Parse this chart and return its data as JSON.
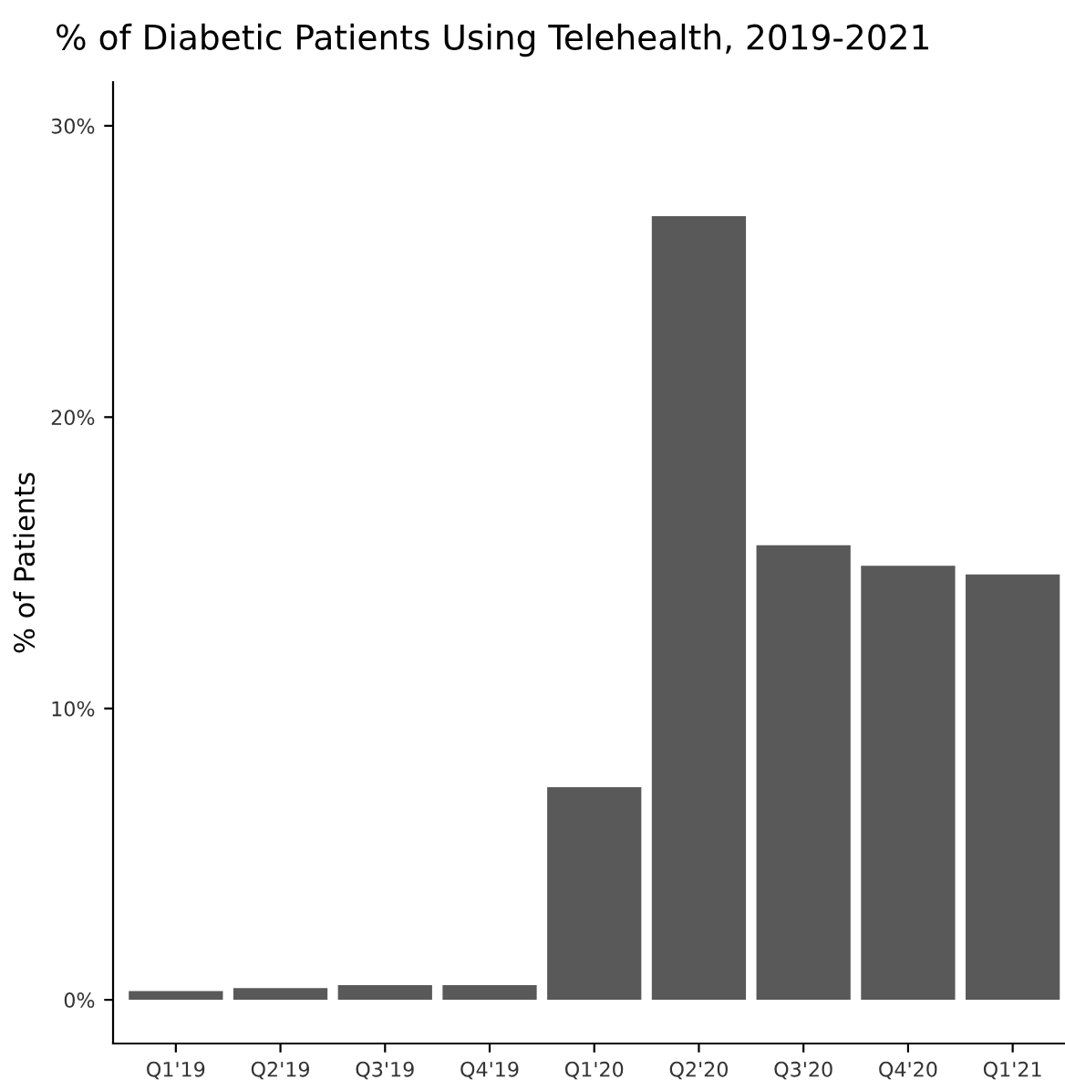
{
  "chart_data": {
    "type": "bar",
    "title": "% of Diabetic Patients Using Telehealth, 2019-2021",
    "ylabel": "% of Patients",
    "categories": [
      "Q1'19",
      "Q2'19",
      "Q3'19",
      "Q4'19",
      "Q1'20",
      "Q2'20",
      "Q3'20",
      "Q4'20",
      "Q1'21"
    ],
    "values": [
      0.3,
      0.4,
      0.5,
      0.5,
      7.3,
      26.9,
      15.6,
      14.9,
      14.6
    ],
    "color": "#595959",
    "ylim": [
      -1.5,
      31.5
    ],
    "yticks": [
      {
        "value": 0,
        "label": "0%"
      },
      {
        "value": 10,
        "label": "10%"
      },
      {
        "value": 20,
        "label": "20%"
      },
      {
        "value": 30,
        "label": "30%"
      }
    ],
    "grid": false
  }
}
